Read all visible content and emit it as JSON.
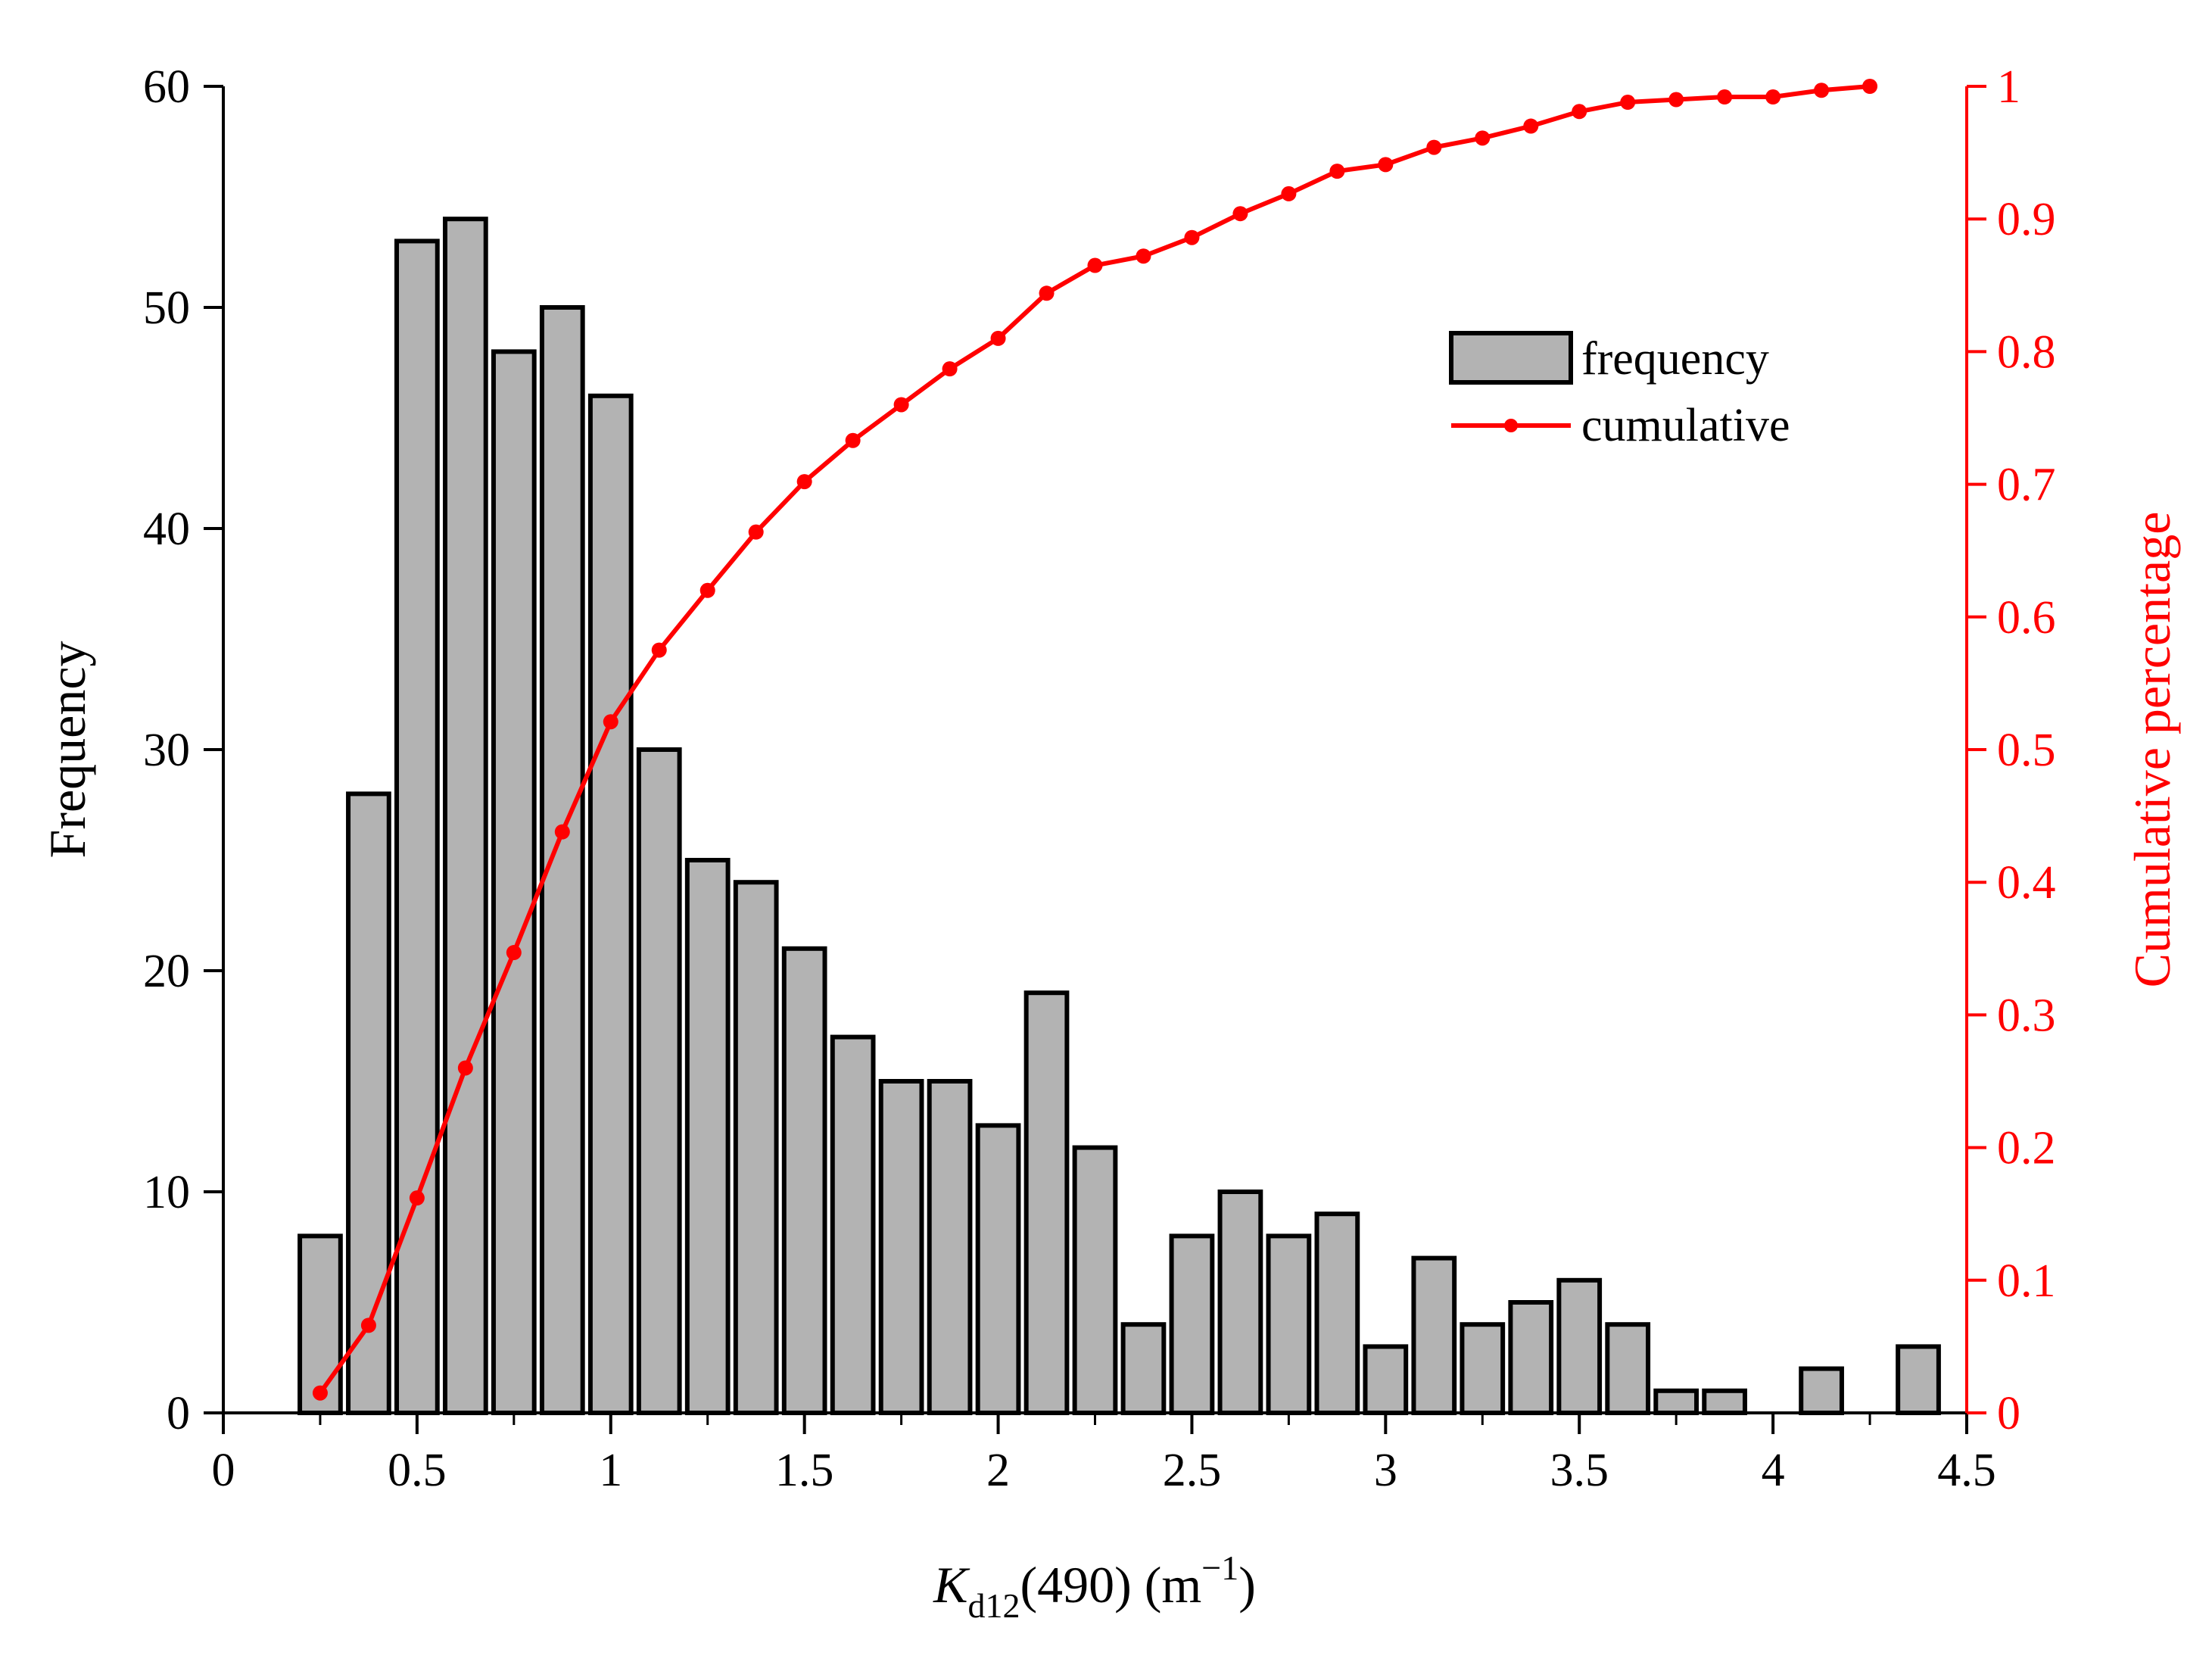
{
  "chart_data": {
    "type": "bar",
    "title": "",
    "xlabel": {
      "main": "K",
      "subscript": "d12",
      "rest": "(490) (m",
      "superscript": "−1",
      "close": ")"
    },
    "ylabel": "Frequency",
    "y2label": "Cumulative percentage",
    "xlim": [
      0,
      4.5
    ],
    "ylim": [
      0,
      60
    ],
    "y2lim": [
      0,
      1
    ],
    "x_ticks": [
      "0",
      "0.5",
      "1",
      "1.5",
      "2",
      "2.5",
      "3",
      "3.5",
      "4",
      "4.5"
    ],
    "y_ticks": [
      "0",
      "10",
      "20",
      "30",
      "40",
      "50",
      "60"
    ],
    "y2_ticks": [
      "0",
      "0.1",
      "0.2",
      "0.3",
      "0.4",
      "0.5",
      "0.6",
      "0.7",
      "0.8",
      "0.9",
      "1"
    ],
    "bin_width": 0.125,
    "bin_centers": [
      0.25,
      0.375,
      0.5,
      0.625,
      0.75,
      0.875,
      1.0,
      1.125,
      1.25,
      1.375,
      1.5,
      1.625,
      1.75,
      1.875,
      2.0,
      2.125,
      2.25,
      2.375,
      2.5,
      2.625,
      2.75,
      2.875,
      3.0,
      3.125,
      3.25,
      3.375,
      3.5,
      3.625,
      3.75,
      3.875,
      4.0,
      4.125,
      4.25,
      4.375
    ],
    "series": [
      {
        "name": "frequency",
        "type": "bar",
        "color": "#b3b3b3",
        "values": [
          8,
          28,
          53,
          54,
          48,
          50,
          46,
          30,
          25,
          24,
          21,
          17,
          15,
          15,
          13,
          19,
          12,
          4,
          8,
          10,
          8,
          9,
          3,
          7,
          4,
          5,
          6,
          4,
          1,
          1,
          0,
          2,
          0,
          3
        ]
      },
      {
        "name": "cumulative",
        "type": "line",
        "color": "#ff0000",
        "x": [
          0.25,
          0.375,
          0.5,
          0.625,
          0.75,
          0.875,
          1.0,
          1.125,
          1.25,
          1.375,
          1.5,
          1.625,
          1.75,
          1.875,
          2.0,
          2.125,
          2.25,
          2.375,
          2.5,
          2.625,
          2.75,
          2.875,
          3.0,
          3.125,
          3.25,
          3.375,
          3.5,
          3.625,
          3.75,
          3.875,
          4.0,
          4.125,
          4.25
        ],
        "values": [
          0.015,
          0.066,
          0.162,
          0.26,
          0.347,
          0.438,
          0.521,
          0.575,
          0.62,
          0.664,
          0.702,
          0.733,
          0.76,
          0.787,
          0.81,
          0.844,
          0.865,
          0.872,
          0.886,
          0.904,
          0.919,
          0.936,
          0.941,
          0.954,
          0.961,
          0.97,
          0.981,
          0.988,
          0.99,
          0.992,
          0.992,
          0.997,
          1.0
        ]
      }
    ],
    "legend": {
      "position": "top-right",
      "entries": [
        "frequency",
        "cumulative"
      ]
    }
  }
}
